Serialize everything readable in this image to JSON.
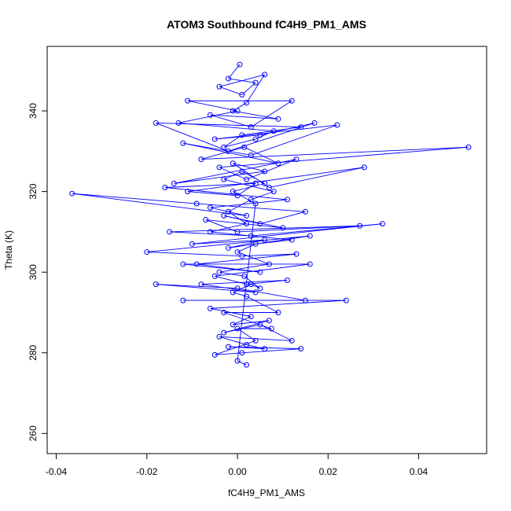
{
  "chart_data": {
    "type": "scatter",
    "title": "ATOM3 Southbound fC4H9_PM1_AMS",
    "xlabel": "fC4H9_PM1_AMS",
    "ylabel": "Theta (K)",
    "xlim": [
      -0.042,
      0.055
    ],
    "ylim": [
      255,
      356
    ],
    "xticks": [
      -0.04,
      -0.02,
      0.0,
      0.02,
      0.04
    ],
    "xtick_labels": [
      "-0.04",
      "-0.02",
      "0.00",
      "0.02",
      "0.04"
    ],
    "yticks": [
      260,
      280,
      300,
      320,
      340
    ],
    "ytick_labels": [
      "260",
      "280",
      "300",
      "320",
      "340"
    ],
    "grid": false,
    "connected": true,
    "series_color": "#0000ff",
    "x": [
      0.0005,
      -0.002,
      0.004,
      0.001,
      -0.004,
      0.006,
      0.002,
      -0.001,
      0.009,
      -0.006,
      0.003,
      0.012,
      -0.011,
      0.0,
      -0.013,
      0.008,
      0.004,
      -0.003,
      0.001,
      0.014,
      -0.018,
      -0.002,
      0.017,
      0.005,
      -0.005,
      0.022,
      0.003,
      -0.012,
      0.009,
      0.0015,
      -0.008,
      0.051,
      -0.004,
      0.002,
      0.013,
      -0.014,
      0.006,
      -0.001,
      0.007,
      0.028,
      -0.011,
      0.0,
      0.004,
      -0.016,
      0.011,
      -0.006,
      0.002,
      -0.0365,
      -0.009,
      0.015,
      0.005,
      -0.003,
      0.01,
      -0.007,
      0.0,
      0.027,
      -0.015,
      0.003,
      0.032,
      -0.01,
      0.006,
      -0.002,
      0.016,
      -0.02,
      0.001,
      0.013,
      -0.009,
      0.005,
      -0.012,
      0.016,
      -0.005,
      0.002,
      0.011,
      -0.008,
      0.004,
      -0.018,
      0.0,
      0.015,
      -0.012,
      0.024,
      -0.006,
      0.003,
      -0.001,
      0.007,
      -0.003,
      0.005,
      0.012,
      -0.004,
      0.002,
      0.006,
      -0.002,
      0.014,
      0.001,
      -0.005,
      0.004,
      0.0,
      0.0075,
      -0.003,
      0.009,
      0.002,
      -0.001,
      0.003,
      0.005,
      0.0015,
      -0.004,
      0.007,
      0.0,
      0.004,
      0.012,
      -0.006,
      0.002,
      -0.002,
      0.003,
      0.008,
      -0.003,
      0.001,
      0.006,
      -0.001,
      0.004,
      0.0,
      0.002
    ],
    "y": [
      351.5,
      348,
      347,
      344,
      346,
      349,
      342,
      340,
      338,
      339,
      336,
      342.5,
      342.5,
      340,
      337,
      335,
      333,
      331,
      334,
      336,
      337,
      330,
      337,
      334,
      333,
      336.5,
      329,
      332,
      327,
      331,
      328,
      331,
      326,
      323,
      328,
      322,
      325,
      327,
      321,
      326,
      320,
      319,
      322,
      321,
      318,
      316,
      314,
      319.5,
      317,
      315,
      312,
      314,
      311,
      313,
      310,
      311.5,
      310,
      309,
      312,
      307,
      308,
      306,
      309,
      305,
      304,
      304.5,
      302,
      300,
      302,
      302,
      299,
      297,
      298,
      297,
      295,
      297,
      296,
      293,
      293,
      293,
      291,
      289,
      287,
      288,
      285,
      287,
      283,
      284,
      282,
      281,
      281.5,
      281,
      280,
      279.5,
      283,
      286,
      286,
      290,
      290,
      294,
      295,
      297,
      296,
      299,
      300,
      302,
      305,
      307,
      308,
      310,
      312,
      315,
      318,
      320,
      323,
      325,
      322,
      320,
      317,
      278,
      277
    ]
  }
}
